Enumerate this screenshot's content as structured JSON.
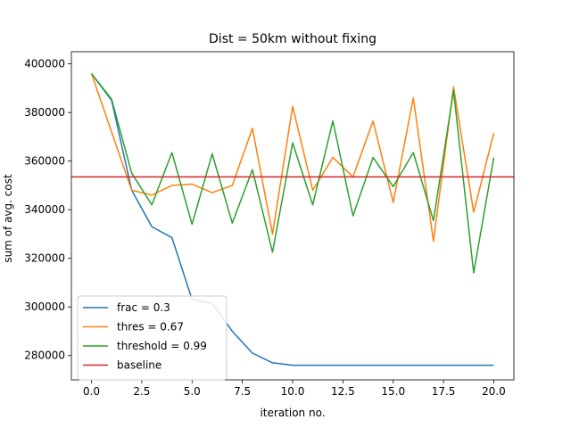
{
  "chart_data": {
    "type": "line",
    "title": "Dist = 50km without fixing",
    "xlabel": "iteration no.",
    "ylabel": "sum of avg. cost",
    "xlim": [
      -1.0,
      21.0
    ],
    "ylim": [
      270000,
      405000
    ],
    "xticks": [
      0.0,
      2.5,
      5.0,
      7.5,
      10.0,
      12.5,
      15.0,
      17.5,
      20.0
    ],
    "xtick_labels": [
      "0.0",
      "2.5",
      "5.0",
      "7.5",
      "10.0",
      "12.5",
      "15.0",
      "17.5",
      "20.0"
    ],
    "yticks": [
      280000,
      300000,
      320000,
      340000,
      360000,
      380000,
      400000
    ],
    "ytick_labels": [
      "280000",
      "300000",
      "320000",
      "340000",
      "360000",
      "380000",
      "400000"
    ],
    "grid": false,
    "legend_position": "lower-left",
    "x": [
      0,
      1,
      2,
      3,
      4,
      5,
      6,
      7,
      8,
      9,
      10,
      11,
      12,
      13,
      14,
      15,
      16,
      17,
      18,
      19,
      20
    ],
    "series": [
      {
        "name": "frac = 0.3",
        "color": "#1f77b4",
        "values": [
          396000,
          385000,
          348000,
          333000,
          328500,
          303000,
          301500,
          290000,
          281000,
          277000,
          276000,
          276000,
          276000,
          276000,
          276000,
          276000,
          276000,
          276000,
          276000,
          276000,
          276000
        ]
      },
      {
        "name": "thres = 0.67",
        "color": "#ff7f0e",
        "values": [
          396000,
          372000,
          348000,
          346000,
          350000,
          350500,
          347000,
          350000,
          373500,
          330000,
          382500,
          348000,
          361500,
          353500,
          376500,
          343000,
          386000,
          327000,
          390500,
          339000,
          371500
        ]
      },
      {
        "name": "threshold = 0.99",
        "color": "#2ca02c",
        "values": [
          396000,
          385500,
          355000,
          342000,
          363500,
          334000,
          363000,
          334500,
          356500,
          322500,
          367500,
          342000,
          376500,
          337500,
          361500,
          349500,
          363500,
          335500,
          389000,
          314000,
          361500
        ]
      },
      {
        "name": "baseline",
        "color": "#d62728",
        "constant": 353500
      }
    ]
  }
}
